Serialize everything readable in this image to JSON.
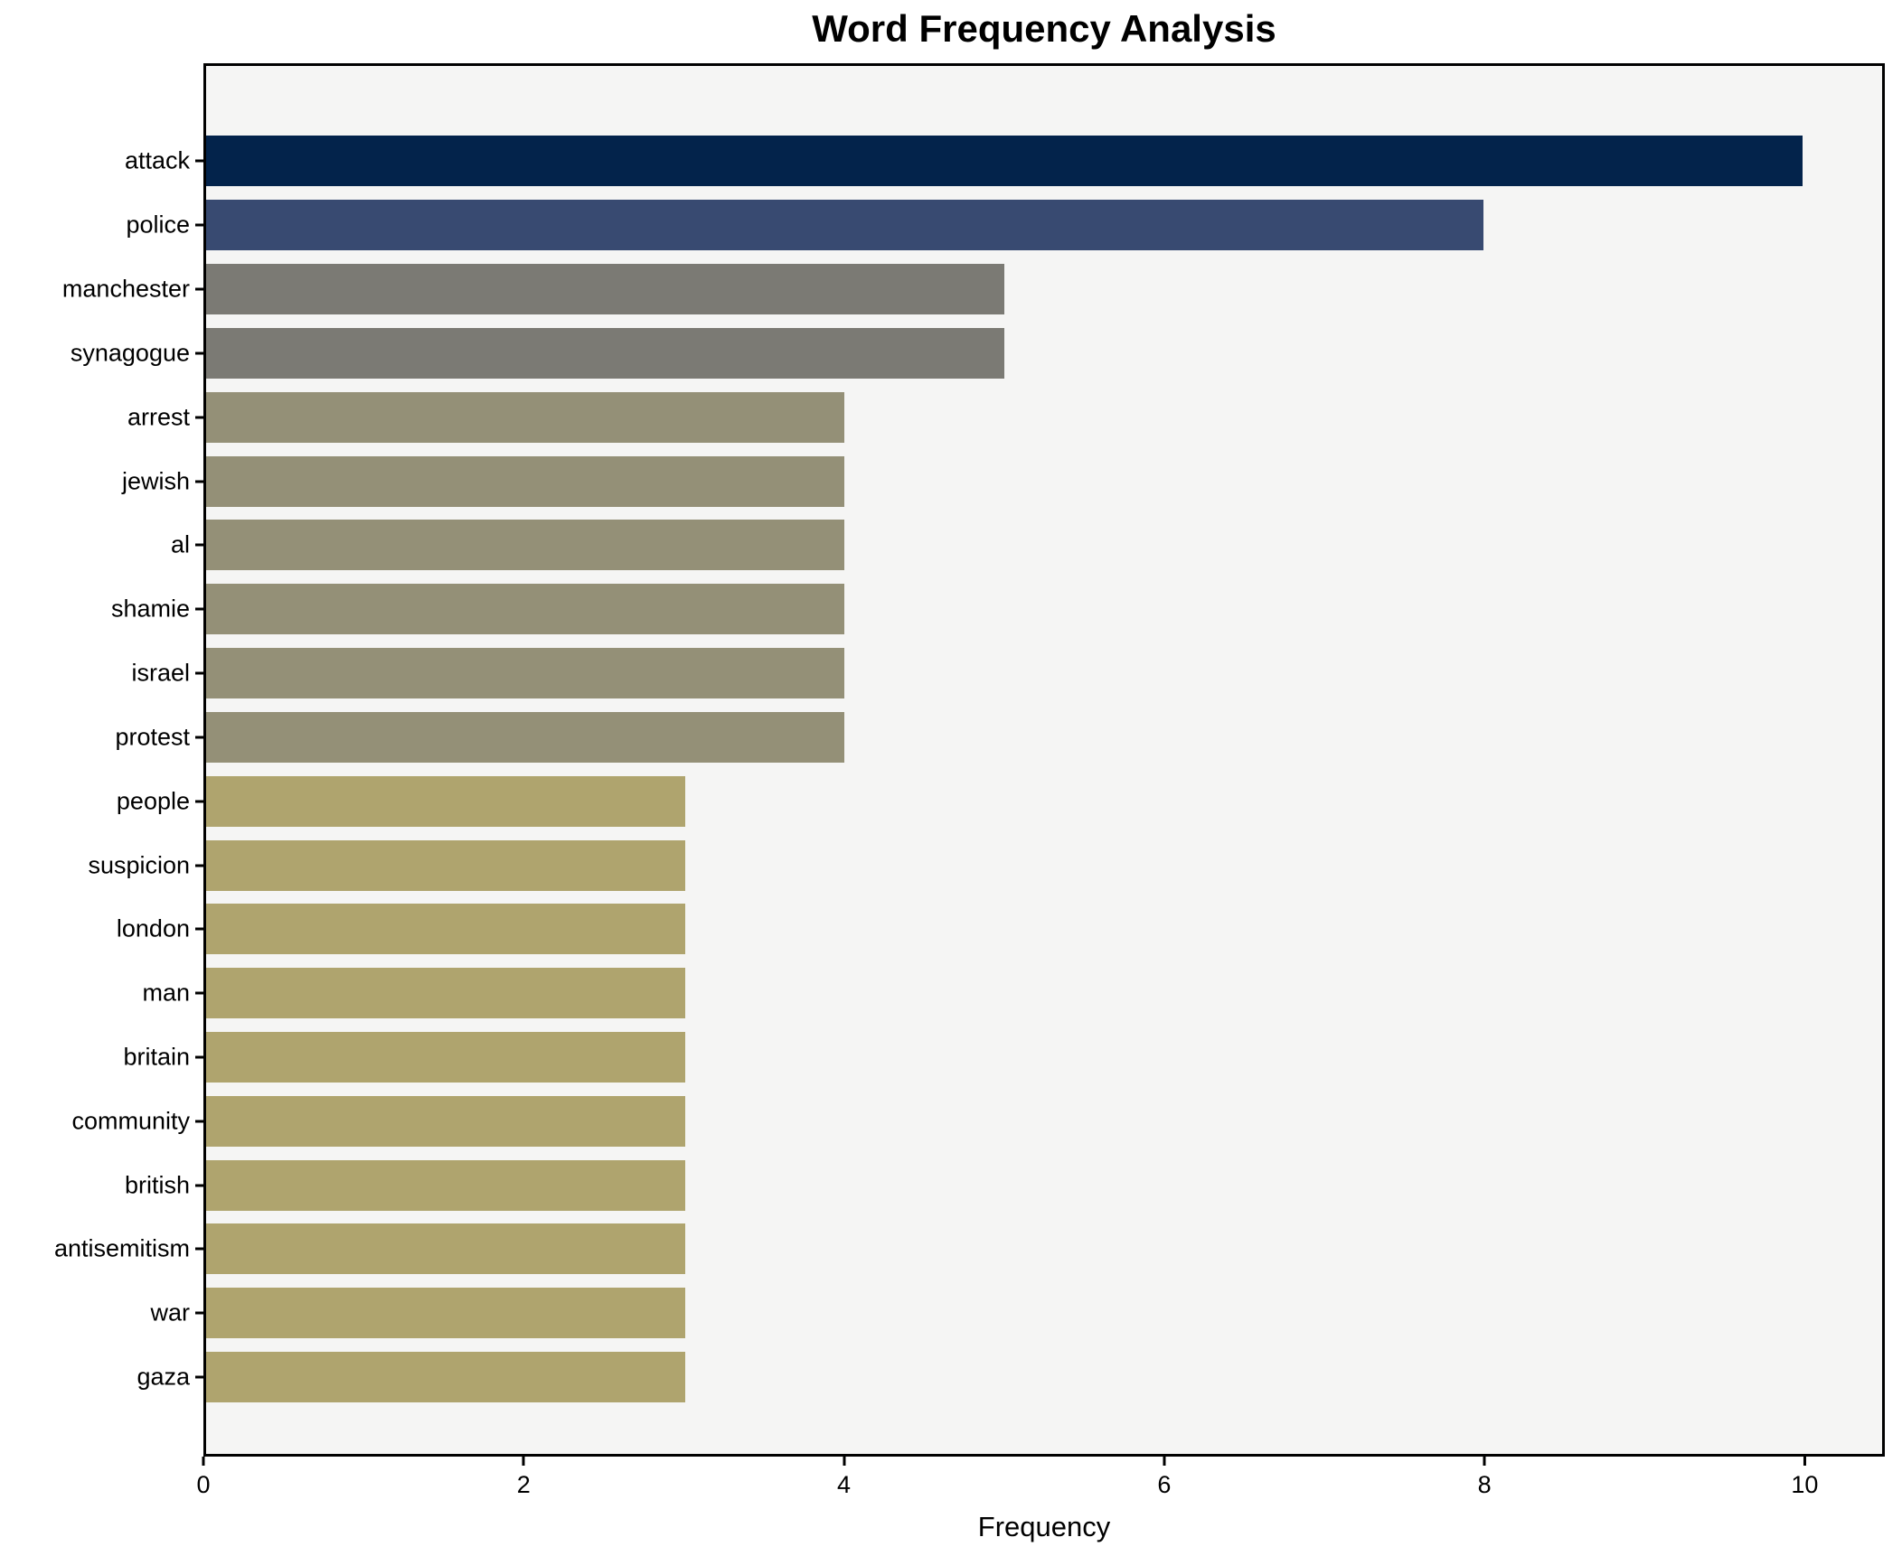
{
  "chart_data": {
    "type": "bar",
    "orientation": "horizontal",
    "title": "Word Frequency Analysis",
    "xlabel": "Frequency",
    "ylabel": "",
    "categories": [
      "attack",
      "police",
      "manchester",
      "synagogue",
      "arrest",
      "jewish",
      "al",
      "shamie",
      "israel",
      "protest",
      "people",
      "suspicion",
      "london",
      "man",
      "britain",
      "community",
      "british",
      "antisemitism",
      "war",
      "gaza"
    ],
    "values": [
      10,
      8,
      5,
      5,
      4,
      4,
      4,
      4,
      4,
      4,
      3,
      3,
      3,
      3,
      3,
      3,
      3,
      3,
      3,
      3
    ],
    "bar_colors": [
      "#03234b",
      "#384a71",
      "#7b7a74",
      "#7b7a74",
      "#949077",
      "#949077",
      "#949077",
      "#949077",
      "#949077",
      "#949077",
      "#afa46e",
      "#afa46e",
      "#afa46e",
      "#afa46e",
      "#afa46e",
      "#afa46e",
      "#afa46e",
      "#afa46e",
      "#afa46e",
      "#afa46e"
    ],
    "xlim": [
      0,
      10.5
    ],
    "xticks": [
      0,
      2,
      4,
      6,
      8,
      10
    ],
    "grid": "off",
    "legend": "none",
    "plot_bg_color": "#f5f5f4",
    "figure_bg_color": "#ffffff",
    "axis_color": "#000000",
    "text_color": "#000000"
  }
}
